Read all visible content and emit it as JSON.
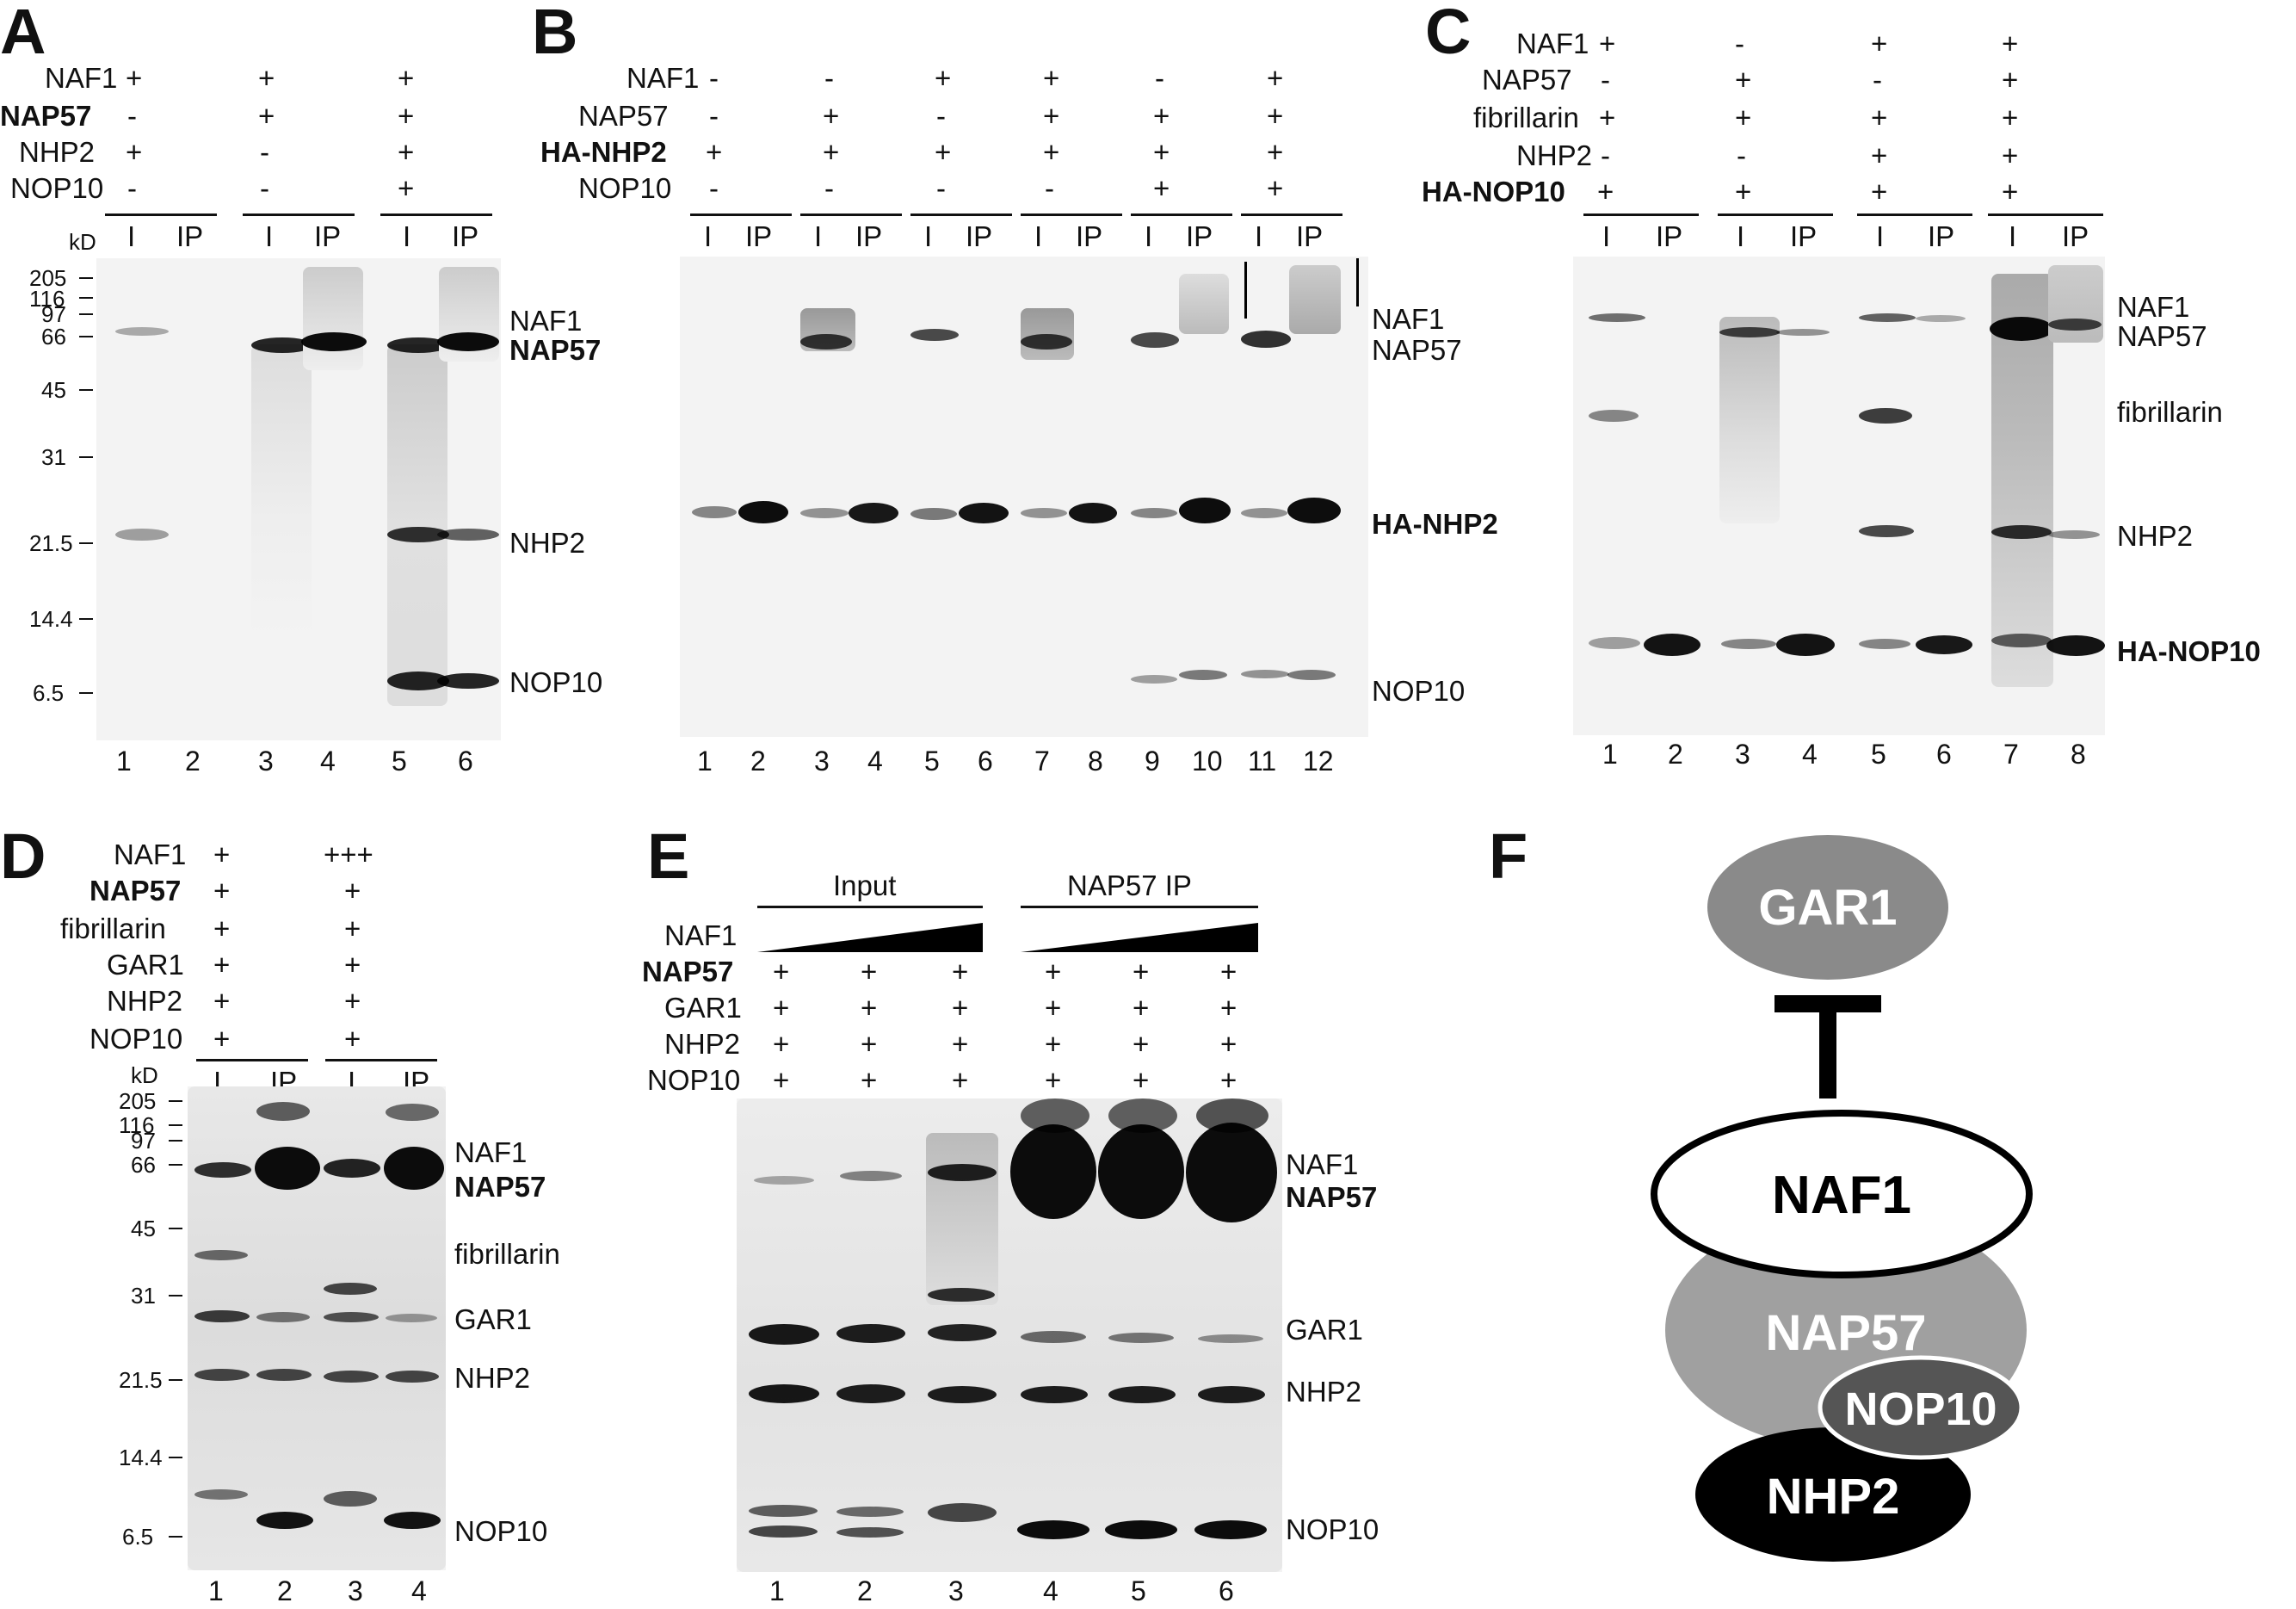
{
  "panels": {
    "A": {
      "letter": "A",
      "conditions": [
        {
          "name": "NAF1",
          "bold": false,
          "values": [
            "+",
            "+",
            "+"
          ]
        },
        {
          "name": "NAP57",
          "bold": true,
          "values": [
            "-",
            "+",
            "+"
          ]
        },
        {
          "name": "NHP2",
          "bold": false,
          "values": [
            "+",
            "-",
            "+"
          ]
        },
        {
          "name": "NOP10",
          "bold": false,
          "values": [
            "-",
            "-",
            "+"
          ]
        }
      ],
      "kd_label": "kD",
      "markers": [
        "205",
        "116",
        "97",
        "66",
        "45",
        "31",
        "21.5",
        "14.4",
        "6.5"
      ],
      "lane_types": [
        "I",
        "IP",
        "I",
        "IP",
        "I",
        "IP"
      ],
      "lane_numbers": [
        "1",
        "2",
        "3",
        "4",
        "5",
        "6"
      ],
      "right_labels": [
        {
          "text": "NAF1",
          "bold": false
        },
        {
          "text": "NAP57",
          "bold": true
        },
        {
          "text": "NHP2",
          "bold": false
        },
        {
          "text": "NOP10",
          "bold": false
        }
      ]
    },
    "B": {
      "letter": "B",
      "conditions": [
        {
          "name": "NAF1",
          "bold": false,
          "values": [
            "-",
            "-",
            "+",
            "+",
            "-",
            "+"
          ]
        },
        {
          "name": "NAP57",
          "bold": false,
          "values": [
            "-",
            "+",
            "-",
            "+",
            "+",
            "+"
          ]
        },
        {
          "name": "HA-NHP2",
          "bold": true,
          "values": [
            "+",
            "+",
            "+",
            "+",
            "+",
            "+"
          ]
        },
        {
          "name": "NOP10",
          "bold": false,
          "values": [
            "-",
            "-",
            "-",
            "-",
            "+",
            "+"
          ]
        }
      ],
      "lane_types": [
        "I",
        "IP",
        "I",
        "IP",
        "I",
        "IP",
        "I",
        "IP",
        "I",
        "IP",
        "I",
        "IP"
      ],
      "lane_numbers": [
        "1",
        "2",
        "3",
        "4",
        "5",
        "6",
        "7",
        "8",
        "9",
        "10",
        "11",
        "12"
      ],
      "right_labels": [
        {
          "text": "NAF1",
          "bold": false
        },
        {
          "text": "NAP57",
          "bold": false
        },
        {
          "text": "HA-NHP2",
          "bold": true
        },
        {
          "text": "NOP10",
          "bold": false
        }
      ]
    },
    "C": {
      "letter": "C",
      "conditions": [
        {
          "name": "NAF1",
          "bold": false,
          "values": [
            "+",
            "-",
            "+",
            "+"
          ]
        },
        {
          "name": "NAP57",
          "bold": false,
          "values": [
            "-",
            "+",
            "-",
            "+"
          ]
        },
        {
          "name": "fibrillarin",
          "bold": false,
          "values": [
            "+",
            "+",
            "+",
            "+"
          ]
        },
        {
          "name": "NHP2",
          "bold": false,
          "values": [
            "-",
            "-",
            "+",
            "+"
          ]
        },
        {
          "name": "HA-NOP10",
          "bold": true,
          "values": [
            "+",
            "+",
            "+",
            "+"
          ]
        }
      ],
      "lane_types": [
        "I",
        "IP",
        "I",
        "IP",
        "I",
        "IP",
        "I",
        "IP"
      ],
      "lane_numbers": [
        "1",
        "2",
        "3",
        "4",
        "5",
        "6",
        "7",
        "8"
      ],
      "right_labels": [
        {
          "text": "NAF1",
          "bold": false
        },
        {
          "text": "NAP57",
          "bold": false
        },
        {
          "text": "fibrillarin",
          "bold": false
        },
        {
          "text": "NHP2",
          "bold": false
        },
        {
          "text": "HA-NOP10",
          "bold": true
        }
      ]
    },
    "D": {
      "letter": "D",
      "conditions": [
        {
          "name": "NAF1",
          "bold": false,
          "values": [
            "+",
            "+++"
          ]
        },
        {
          "name": "NAP57",
          "bold": true,
          "values": [
            "+",
            "+"
          ]
        },
        {
          "name": "fibrillarin",
          "bold": false,
          "values": [
            "+",
            "+"
          ]
        },
        {
          "name": "GAR1",
          "bold": false,
          "values": [
            "+",
            "+"
          ]
        },
        {
          "name": "NHP2",
          "bold": false,
          "values": [
            "+",
            "+"
          ]
        },
        {
          "name": "NOP10",
          "bold": false,
          "values": [
            "+",
            "+"
          ]
        }
      ],
      "kd_label": "kD",
      "markers": [
        "205",
        "116",
        "97",
        "66",
        "45",
        "31",
        "21.5",
        "14.4",
        "6.5"
      ],
      "lane_types": [
        "I",
        "IP",
        "I",
        "IP"
      ],
      "lane_numbers": [
        "1",
        "2",
        "3",
        "4"
      ],
      "right_labels": [
        {
          "text": "NAF1",
          "bold": false
        },
        {
          "text": "NAP57",
          "bold": true
        },
        {
          "text": "fibrillarin",
          "bold": false
        },
        {
          "text": "GAR1",
          "bold": false
        },
        {
          "text": "NHP2",
          "bold": false
        },
        {
          "text": "NOP10",
          "bold": false
        }
      ]
    },
    "E": {
      "letter": "E",
      "groups": [
        "Input",
        "NAP57 IP"
      ],
      "gradient_label": "NAF1",
      "conditions": [
        {
          "name": "NAP57",
          "bold": true,
          "values": [
            "+",
            "+",
            "+",
            "+",
            "+",
            "+"
          ]
        },
        {
          "name": "GAR1",
          "bold": false,
          "values": [
            "+",
            "+",
            "+",
            "+",
            "+",
            "+"
          ]
        },
        {
          "name": "NHP2",
          "bold": false,
          "values": [
            "+",
            "+",
            "+",
            "+",
            "+",
            "+"
          ]
        },
        {
          "name": "NOP10",
          "bold": false,
          "values": [
            "+",
            "+",
            "+",
            "+",
            "+",
            "+"
          ]
        }
      ],
      "lane_numbers": [
        "1",
        "2",
        "3",
        "4",
        "5",
        "6"
      ],
      "right_labels": [
        {
          "text": "NAF1",
          "bold": false
        },
        {
          "text": "NAP57",
          "bold": true
        },
        {
          "text": "GAR1",
          "bold": false
        },
        {
          "text": "NHP2",
          "bold": false
        },
        {
          "text": "NOP10",
          "bold": false
        }
      ]
    },
    "F": {
      "letter": "F",
      "nodes": {
        "gar1": "GAR1",
        "naf1": "NAF1",
        "nap57": "NAP57",
        "nop10": "NOP10",
        "nhp2": "NHP2"
      }
    }
  }
}
